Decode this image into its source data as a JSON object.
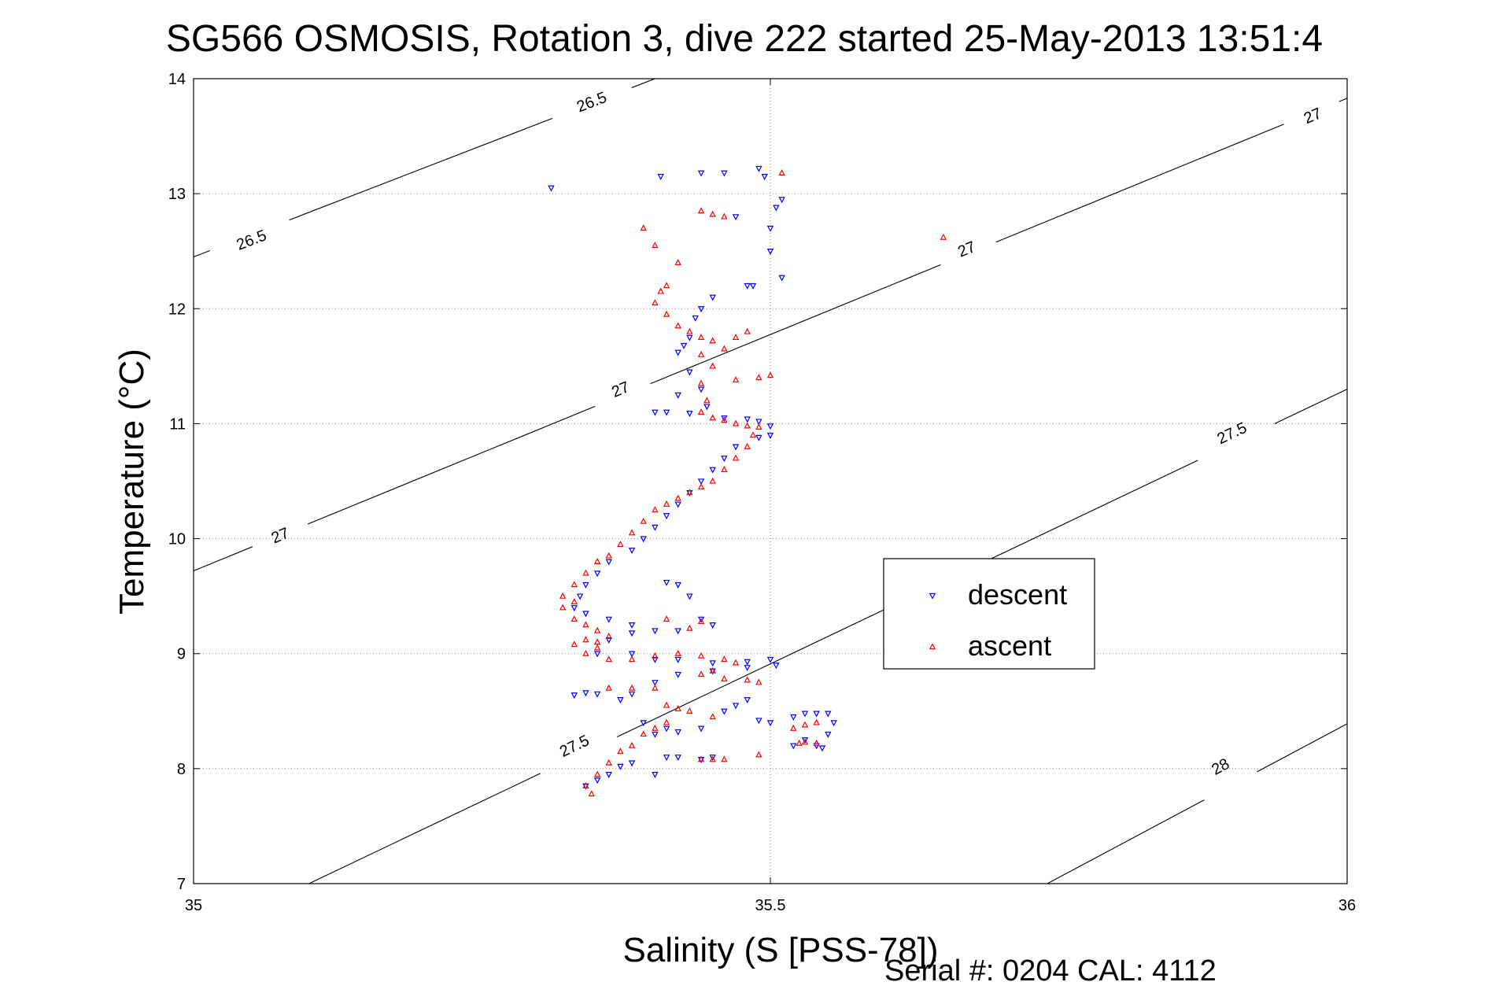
{
  "chart_data": {
    "type": "scatter",
    "title": "SG566 OSMOSIS, Rotation 3, dive 222 started 25-May-2013 13:51:4",
    "xlabel": "Salinity (S [PSS-78])",
    "ylabel": "Temperature (°C)",
    "xlim": [
      35,
      36
    ],
    "ylim": [
      7,
      14
    ],
    "x_ticks": [
      35,
      35.5,
      36
    ],
    "x_tick_labels": [
      "35",
      "35.5",
      "36"
    ],
    "y_ticks": [
      7,
      8,
      9,
      10,
      11,
      12,
      13,
      14
    ],
    "y_tick_labels": [
      "7",
      "8",
      "9",
      "10",
      "11",
      "12",
      "13",
      "14"
    ],
    "grid": true,
    "legend": {
      "position": "center-right",
      "entries": [
        "descent",
        "ascent"
      ]
    },
    "footer": "Serial #: 0204  CAL: 4112",
    "colors": {
      "descent": "#0000ff",
      "ascent": "#ff0000",
      "contour": "#000000"
    },
    "density_contours": [
      {
        "level": "26.5",
        "points": [
          [
            35,
            12.45
          ],
          [
            35.4,
            14
          ]
        ],
        "labels": [
          [
            35.05,
            12.6
          ],
          [
            35.345,
            13.8
          ]
        ]
      },
      {
        "level": "27",
        "points": [
          [
            35,
            9.72
          ],
          [
            36,
            13.83
          ]
        ],
        "labels": [
          [
            35.075,
            10.03
          ],
          [
            35.37,
            11.3
          ],
          [
            35.67,
            12.52
          ],
          [
            35.97,
            13.68
          ]
        ]
      },
      {
        "level": "27.5",
        "points": [
          [
            35.1,
            7
          ],
          [
            36,
            11.3
          ]
        ],
        "labels": [
          [
            35.33,
            8.2
          ],
          [
            35.9,
            10.92
          ]
        ]
      },
      {
        "level": "28",
        "points": [
          [
            35.74,
            7
          ],
          [
            36,
            8.39
          ]
        ],
        "labels": [
          [
            35.89,
            8.02
          ]
        ]
      }
    ],
    "series": [
      {
        "name": "descent",
        "marker": "triangle-down",
        "points": [
          [
            35.31,
            13.05
          ],
          [
            35.405,
            13.15
          ],
          [
            35.44,
            13.18
          ],
          [
            35.46,
            13.18
          ],
          [
            35.49,
            13.22
          ],
          [
            35.495,
            13.15
          ],
          [
            35.51,
            12.95
          ],
          [
            35.505,
            12.88
          ],
          [
            35.5,
            12.7
          ],
          [
            35.5,
            12.5
          ],
          [
            35.47,
            12.8
          ],
          [
            35.48,
            12.2
          ],
          [
            35.485,
            12.2
          ],
          [
            35.51,
            12.27
          ],
          [
            35.45,
            12.1
          ],
          [
            35.44,
            12.0
          ],
          [
            35.435,
            11.92
          ],
          [
            35.43,
            11.75
          ],
          [
            35.425,
            11.68
          ],
          [
            35.42,
            11.62
          ],
          [
            35.43,
            11.45
          ],
          [
            35.44,
            11.3
          ],
          [
            35.445,
            11.15
          ],
          [
            35.42,
            11.25
          ],
          [
            35.4,
            11.1
          ],
          [
            35.41,
            11.1
          ],
          [
            35.43,
            11.09
          ],
          [
            35.46,
            11.05
          ],
          [
            35.48,
            11.04
          ],
          [
            35.49,
            11.02
          ],
          [
            35.5,
            10.98
          ],
          [
            35.5,
            10.9
          ],
          [
            35.49,
            10.88
          ],
          [
            35.47,
            10.8
          ],
          [
            35.46,
            10.7
          ],
          [
            35.45,
            10.6
          ],
          [
            35.44,
            10.5
          ],
          [
            35.43,
            10.4
          ],
          [
            35.42,
            10.3
          ],
          [
            35.41,
            10.2
          ],
          [
            35.4,
            10.1
          ],
          [
            35.39,
            10.0
          ],
          [
            35.38,
            9.9
          ],
          [
            35.36,
            9.8
          ],
          [
            35.35,
            9.7
          ],
          [
            35.34,
            9.6
          ],
          [
            35.335,
            9.5
          ],
          [
            35.33,
            9.4
          ],
          [
            35.34,
            9.35
          ],
          [
            35.36,
            9.3
          ],
          [
            35.38,
            9.25
          ],
          [
            35.4,
            9.2
          ],
          [
            35.41,
            9.62
          ],
          [
            35.42,
            9.6
          ],
          [
            35.43,
            9.5
          ],
          [
            35.44,
            9.3
          ],
          [
            35.45,
            9.25
          ],
          [
            35.42,
            9.2
          ],
          [
            35.38,
            9.18
          ],
          [
            35.36,
            9.12
          ],
          [
            35.35,
            9.0
          ],
          [
            35.38,
            9.0
          ],
          [
            35.4,
            8.95
          ],
          [
            35.42,
            8.95
          ],
          [
            35.45,
            8.92
          ],
          [
            35.48,
            8.93
          ],
          [
            35.5,
            8.95
          ],
          [
            35.505,
            8.9
          ],
          [
            35.48,
            8.88
          ],
          [
            35.45,
            8.85
          ],
          [
            35.42,
            8.82
          ],
          [
            35.4,
            8.75
          ],
          [
            35.38,
            8.65
          ],
          [
            35.37,
            8.6
          ],
          [
            35.35,
            8.65
          ],
          [
            35.34,
            8.66
          ],
          [
            35.33,
            8.64
          ],
          [
            35.39,
            8.4
          ],
          [
            35.4,
            8.3
          ],
          [
            35.41,
            8.35
          ],
          [
            35.42,
            8.32
          ],
          [
            35.44,
            8.35
          ],
          [
            35.46,
            8.5
          ],
          [
            35.47,
            8.55
          ],
          [
            35.48,
            8.6
          ],
          [
            35.49,
            8.42
          ],
          [
            35.5,
            8.4
          ],
          [
            35.41,
            8.1
          ],
          [
            35.42,
            8.1
          ],
          [
            35.44,
            8.08
          ],
          [
            35.45,
            8.1
          ],
          [
            35.38,
            8.05
          ],
          [
            35.37,
            8.02
          ],
          [
            35.36,
            7.95
          ],
          [
            35.35,
            7.9
          ],
          [
            35.34,
            7.85
          ],
          [
            35.4,
            7.95
          ],
          [
            35.52,
            8.45
          ],
          [
            35.53,
            8.48
          ],
          [
            35.54,
            8.48
          ],
          [
            35.55,
            8.48
          ],
          [
            35.555,
            8.4
          ],
          [
            35.55,
            8.3
          ],
          [
            35.53,
            8.25
          ],
          [
            35.52,
            8.2
          ],
          [
            35.54,
            8.2
          ],
          [
            35.545,
            8.18
          ]
        ]
      },
      {
        "name": "ascent",
        "marker": "triangle-up",
        "points": [
          [
            35.51,
            13.18
          ],
          [
            35.44,
            12.85
          ],
          [
            35.45,
            12.82
          ],
          [
            35.46,
            12.8
          ],
          [
            35.39,
            12.7
          ],
          [
            35.4,
            12.55
          ],
          [
            35.65,
            12.62
          ],
          [
            35.42,
            12.4
          ],
          [
            35.41,
            12.2
          ],
          [
            35.405,
            12.15
          ],
          [
            35.4,
            12.05
          ],
          [
            35.41,
            11.95
          ],
          [
            35.42,
            11.85
          ],
          [
            35.43,
            11.8
          ],
          [
            35.44,
            11.75
          ],
          [
            35.45,
            11.72
          ],
          [
            35.47,
            11.75
          ],
          [
            35.48,
            11.8
          ],
          [
            35.46,
            11.65
          ],
          [
            35.44,
            11.6
          ],
          [
            35.45,
            11.5
          ],
          [
            35.44,
            11.35
          ],
          [
            35.47,
            11.38
          ],
          [
            35.49,
            11.4
          ],
          [
            35.5,
            11.42
          ],
          [
            35.445,
            11.2
          ],
          [
            35.44,
            11.1
          ],
          [
            35.45,
            11.05
          ],
          [
            35.46,
            11.03
          ],
          [
            35.47,
            11.0
          ],
          [
            35.48,
            10.98
          ],
          [
            35.49,
            10.97
          ],
          [
            35.485,
            10.9
          ],
          [
            35.48,
            10.8
          ],
          [
            35.47,
            10.7
          ],
          [
            35.46,
            10.6
          ],
          [
            35.45,
            10.5
          ],
          [
            35.44,
            10.45
          ],
          [
            35.43,
            10.4
          ],
          [
            35.42,
            10.35
          ],
          [
            35.41,
            10.3
          ],
          [
            35.4,
            10.25
          ],
          [
            35.39,
            10.15
          ],
          [
            35.38,
            10.05
          ],
          [
            35.37,
            9.95
          ],
          [
            35.36,
            9.85
          ],
          [
            35.35,
            9.8
          ],
          [
            35.34,
            9.7
          ],
          [
            35.33,
            9.6
          ],
          [
            35.32,
            9.5
          ],
          [
            35.33,
            9.45
          ],
          [
            35.32,
            9.4
          ],
          [
            35.33,
            9.3
          ],
          [
            35.34,
            9.25
          ],
          [
            35.35,
            9.2
          ],
          [
            35.36,
            9.15
          ],
          [
            35.35,
            9.1
          ],
          [
            35.33,
            9.08
          ],
          [
            35.34,
            9.0
          ],
          [
            35.36,
            8.95
          ],
          [
            35.38,
            8.95
          ],
          [
            35.4,
            8.98
          ],
          [
            35.42,
            9.0
          ],
          [
            35.44,
            8.98
          ],
          [
            35.46,
            8.95
          ],
          [
            35.47,
            8.92
          ],
          [
            35.45,
            8.85
          ],
          [
            35.44,
            8.82
          ],
          [
            35.46,
            8.78
          ],
          [
            35.48,
            8.77
          ],
          [
            35.49,
            8.75
          ],
          [
            35.4,
            8.7
          ],
          [
            35.38,
            8.7
          ],
          [
            35.36,
            8.7
          ],
          [
            35.41,
            8.55
          ],
          [
            35.42,
            8.52
          ],
          [
            35.43,
            8.5
          ],
          [
            35.45,
            8.45
          ],
          [
            35.41,
            8.4
          ],
          [
            35.4,
            8.35
          ],
          [
            35.39,
            8.3
          ],
          [
            35.38,
            8.2
          ],
          [
            35.37,
            8.15
          ],
          [
            35.36,
            8.05
          ],
          [
            35.35,
            7.95
          ],
          [
            35.34,
            7.85
          ],
          [
            35.345,
            7.78
          ],
          [
            35.44,
            8.08
          ],
          [
            35.45,
            8.08
          ],
          [
            35.46,
            8.08
          ],
          [
            35.49,
            8.12
          ],
          [
            35.52,
            8.35
          ],
          [
            35.53,
            8.38
          ],
          [
            35.54,
            8.4
          ],
          [
            35.525,
            8.22
          ],
          [
            35.53,
            8.23
          ],
          [
            35.54,
            8.22
          ],
          [
            35.41,
            9.3
          ],
          [
            35.43,
            9.22
          ],
          [
            35.44,
            9.28
          ],
          [
            35.34,
            9.12
          ],
          [
            35.35,
            9.05
          ]
        ]
      }
    ]
  }
}
